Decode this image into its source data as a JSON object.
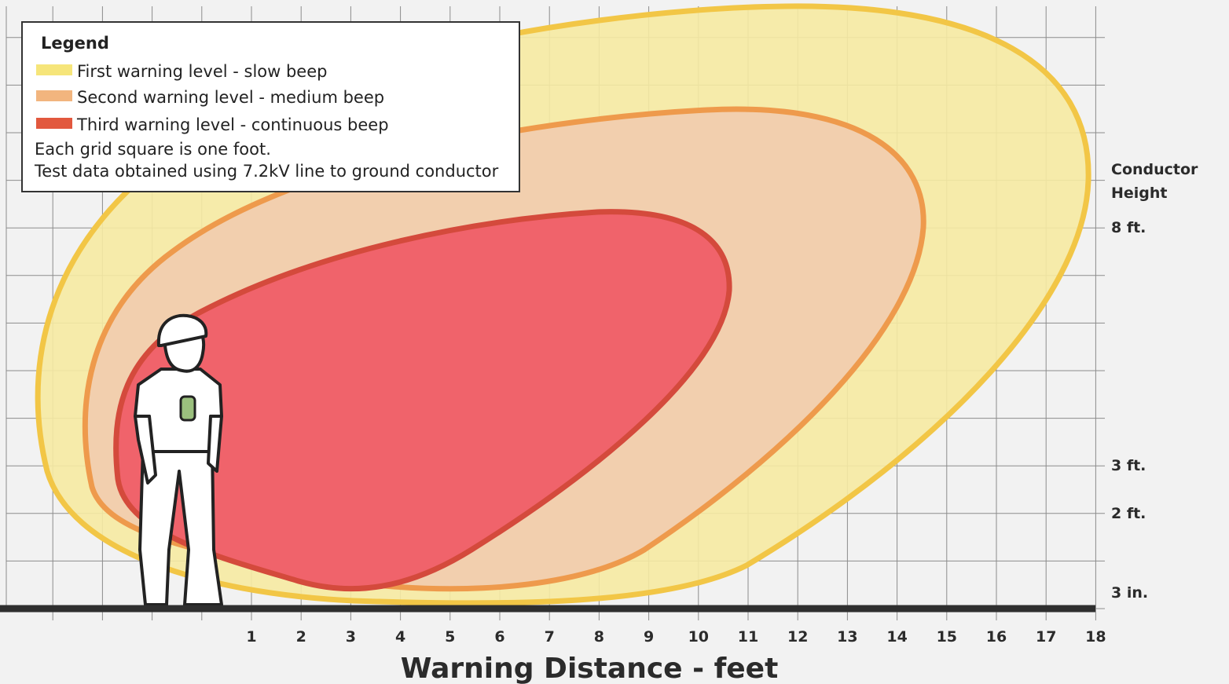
{
  "legend": {
    "title": "Legend",
    "items": [
      "First warning level - slow beep",
      "Second warning level - medium beep",
      "Third warning level - continuous beep"
    ],
    "notes": [
      "Each grid square is one foot.",
      "Test data obtained using 7.2kV line to ground conductor"
    ]
  },
  "x_axis": {
    "title": "Warning Distance - feet",
    "ticks": [
      1,
      2,
      3,
      4,
      5,
      6,
      7,
      8,
      9,
      10,
      11,
      12,
      13,
      14,
      15,
      16,
      17,
      18
    ]
  },
  "y_axis": {
    "title": "Conductor Height",
    "ticks": [
      "8 ft.",
      "3 ft.",
      "2 ft.",
      "3 in."
    ]
  }
}
